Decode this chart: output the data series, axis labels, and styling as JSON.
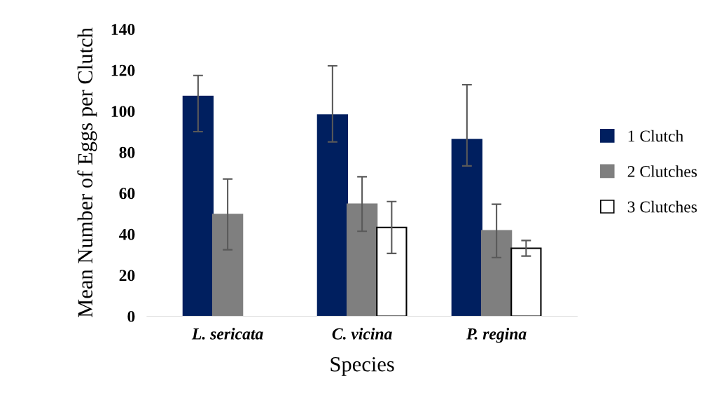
{
  "chart_data": {
    "type": "bar",
    "xlabel": "Species",
    "ylabel": "Mean Number of Eggs per Clutch",
    "categories": [
      "L. sericata",
      "C. vicina",
      "P. regina"
    ],
    "series": [
      {
        "name": "1 Clutch",
        "color": "#001f5f",
        "values": [
          107.1,
          98.1,
          86.1
        ],
        "errors": [
          [
            90,
            117.4
          ],
          [
            85,
            122.1
          ],
          [
            73.3,
            112.9
          ]
        ]
      },
      {
        "name": "2 Clutches",
        "color": "#7f7f7f",
        "values": [
          49.6,
          54.6,
          41.6
        ],
        "errors": [
          [
            32.4,
            66.9
          ],
          [
            41.4,
            68
          ],
          [
            28.6,
            54.6
          ]
        ]
      },
      {
        "name": "3 Clutches",
        "color": "#ffffff",
        "values": [
          0,
          43.3,
          33.1
        ],
        "errors": [
          null,
          [
            30.6,
            55.9
          ],
          [
            29.3,
            36.9
          ]
        ]
      }
    ],
    "ylim": [
      0,
      140
    ],
    "yticks": [
      0,
      20,
      40,
      60,
      80,
      100,
      120,
      140
    ],
    "grid": false,
    "legend": "right"
  }
}
